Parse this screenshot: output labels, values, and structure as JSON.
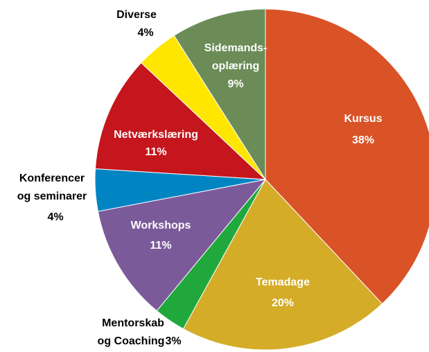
{
  "chart_data": {
    "type": "pie",
    "categories": [
      "Kursus",
      "Temadage",
      "Mentorskab\nog Coaching",
      "Workshops",
      "Konferencer\nog seminarer",
      "Netværkslæring",
      "Diverse",
      "Sidemands-\noplæring"
    ],
    "values": [
      38,
      20,
      3,
      11,
      4,
      11,
      4,
      9
    ],
    "value_labels": [
      "38%",
      "20%",
      "3%",
      "11%",
      "4%",
      "11%",
      "4%",
      "9%"
    ],
    "colors": [
      "#d95327",
      "#d4ac28",
      "#21a83d",
      "#7b5a9a",
      "#0085c2",
      "#c4161c",
      "#ffe600",
      "#6b8c57"
    ]
  }
}
